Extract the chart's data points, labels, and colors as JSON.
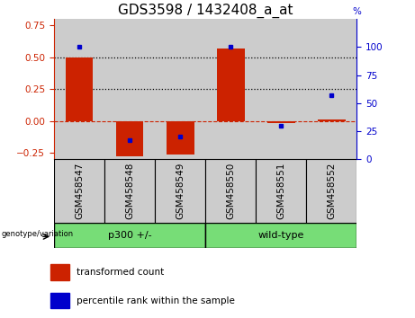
{
  "title": "GDS3598 / 1432408_a_at",
  "samples": [
    "GSM458547",
    "GSM458548",
    "GSM458549",
    "GSM458550",
    "GSM458551",
    "GSM458552"
  ],
  "red_values": [
    0.5,
    -0.28,
    -0.265,
    0.57,
    -0.02,
    0.01
  ],
  "blue_values_pct": [
    100,
    17,
    20,
    100,
    30,
    57
  ],
  "left_ylim": [
    -0.3,
    0.8
  ],
  "right_ylim": [
    0,
    125
  ],
  "left_yticks": [
    -0.25,
    0,
    0.25,
    0.5,
    0.75
  ],
  "right_yticks": [
    0,
    25,
    50,
    75,
    100
  ],
  "dotted_lines": [
    0.5,
    0.25
  ],
  "group1_label": "p300 +/-",
  "group2_label": "wild-type",
  "group1_color": "#77DD77",
  "group2_color": "#77DD77",
  "bar_color": "#CC2200",
  "dot_color": "#0000CC",
  "sample_bg_color": "#CCCCCC",
  "legend_label_red": "transformed count",
  "legend_label_blue": "percentile rank within the sample",
  "genotype_label": "genotype/variation",
  "bar_width": 0.55,
  "left_axis_color": "#CC2200",
  "right_axis_color": "#0000CC",
  "title_fontsize": 11,
  "tick_fontsize": 7.5,
  "label_fontsize": 7.5,
  "group_label_fontsize": 8
}
